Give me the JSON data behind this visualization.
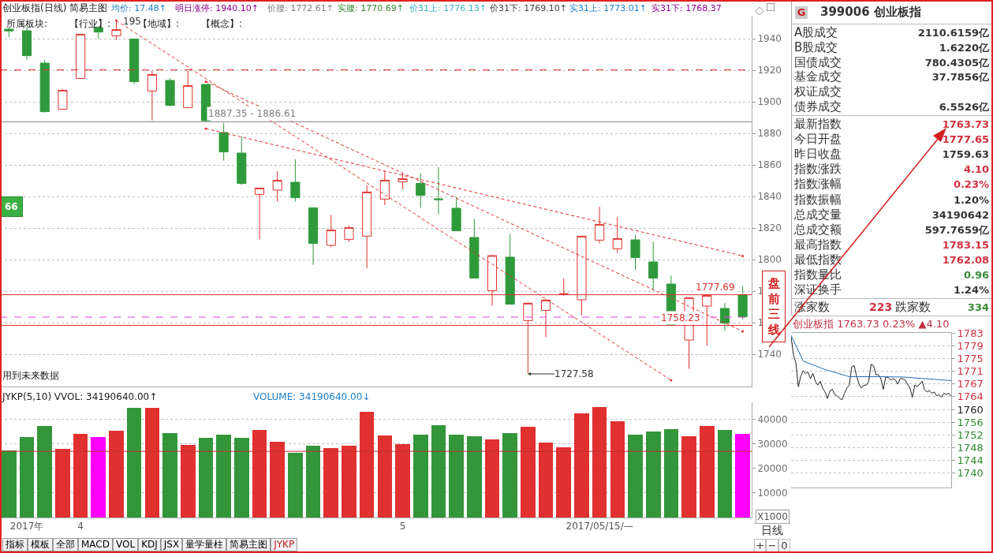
{
  "chart_data": [
    {
      "type": "candlestick",
      "title": "创业板指(日线) 简易主图",
      "annotations": [
        "均价: 17.48↑",
        "明日涨停: 1940.10↑",
        "价腰: 1772.61↑",
        "实腰: 1770.69↑",
        "价31上: 1776.13↑",
        "价31下: 1769.10↑",
        "实31上: 1773.01↑",
        "实31下: 1768.37",
        "所属板块:",
        "【行业】:",
        "【地域】:",
        "【概念】:",
        "用到未来数据",
        "盘前三线",
        "66",
        "1727.58",
        "195"
      ],
      "categories": [
        null,
        null,
        null,
        null,
        null,
        null,
        null,
        null,
        null,
        null,
        null,
        null,
        null,
        null,
        null,
        null,
        null,
        null,
        null,
        null,
        null,
        null,
        null,
        null,
        null,
        null,
        null,
        null,
        null,
        null,
        null,
        null,
        null,
        null,
        null,
        null,
        null,
        null,
        null,
        null,
        null,
        null
      ],
      "ohlc": [
        [
          1946,
          1947,
          1941,
          1944.9
        ],
        [
          1945,
          1947,
          1926.7,
          1929.2
        ],
        [
          1924.5,
          1926.5,
          1893.2,
          1893.7
        ],
        [
          1895.3,
          1907.8,
          1895.3,
          1907.3
        ],
        [
          1914.8,
          1943,
          1914.5,
          1942.8
        ],
        [
          1947,
          1948,
          1939.8,
          1944.2
        ],
        [
          1941.8,
          1951.5,
          1939.2,
          1945.7
        ],
        [
          1939.8,
          1940,
          1911.2,
          1912.7
        ],
        [
          1906.8,
          1919.8,
          1888.2,
          1917.3
        ],
        [
          1913.5,
          1915,
          1897.2,
          1897.7
        ],
        [
          1896.3,
          1919.5,
          1896.3,
          1910.3
        ],
        [
          1911,
          1911,
          1887.35,
          1888
        ],
        [
          1880.5,
          1886.61,
          1862.7,
          1868.2
        ],
        [
          1867.5,
          1878,
          1847.3,
          1848.2
        ],
        [
          1841.3,
          1845.5,
          1812.8,
          1845.3
        ],
        [
          1844,
          1856,
          1836.7,
          1850.2
        ],
        [
          1849,
          1863.5,
          1836.7,
          1839.2
        ],
        [
          1832.8,
          1833,
          1796.7,
          1810.2
        ],
        [
          1809,
          1828.3,
          1807.8,
          1818.7
        ],
        [
          1812.8,
          1821.5,
          1811.2,
          1820.2
        ],
        [
          1814.8,
          1847,
          1794.5,
          1842.8
        ],
        [
          1838.3,
          1856,
          1834.5,
          1850.3
        ],
        [
          1849.2,
          1854.5,
          1844.5,
          1851.2
        ],
        [
          1848.3,
          1854.5,
          1832.8,
          1840.7
        ],
        [
          1838.5,
          1858.5,
          1828.7,
          1838
        ],
        [
          1832.5,
          1839.5,
          1818,
          1818.2
        ],
        [
          1814,
          1825.7,
          1788,
          1788.2
        ],
        [
          1780.3,
          1803,
          1770.7,
          1802.5
        ],
        [
          1801.5,
          1816,
          1771.5,
          1771.7
        ],
        [
          1761.3,
          1773,
          1727.58,
          1772.3
        ],
        [
          1767.8,
          1775,
          1750.7,
          1774.3
        ],
        [
          1778,
          1788.2,
          1777,
          1778.3
        ],
        [
          1774.5,
          1815,
          1764.5,
          1814.8
        ],
        [
          1812.3,
          1833.5,
          1810.3,
          1822.3
        ],
        [
          1806.8,
          1827,
          1804.2,
          1813.3
        ],
        [
          1812.5,
          1815.7,
          1793.5,
          1801.2
        ],
        [
          1798.5,
          1811.2,
          1780.3,
          1788.2
        ],
        [
          1784.5,
          1789.8,
          1758.23,
          1758.5
        ],
        [
          1749,
          1776,
          1730.8,
          1775.8
        ],
        [
          1770.5,
          1777.69,
          1745.3,
          1777.2
        ],
        [
          1769,
          1772.3,
          1754.8,
          1759.8
        ],
        [
          1777.65,
          1783.15,
          1762.08,
          1763.73
        ]
      ],
      "series": [
        {
          "type": "line",
          "color": "#e03030",
          "line_style": "dashed",
          "values": [
            null,
            null,
            null,
            null,
            null,
            null,
            1951.5,
            null,
            null,
            null,
            null,
            null,
            null,
            null,
            null,
            null,
            null,
            null,
            null,
            null,
            null,
            null,
            null,
            null,
            null,
            null,
            null,
            null,
            null,
            null,
            null,
            null,
            null,
            null,
            null,
            null,
            null,
            1723.5,
            null,
            null,
            null,
            null
          ]
        },
        {
          "type": "line",
          "color": "#e03030",
          "line_style": "dashed",
          "values": [
            null,
            null,
            null,
            null,
            null,
            null,
            null,
            null,
            null,
            null,
            null,
            1912.8,
            null,
            null,
            null,
            null,
            null,
            null,
            null,
            null,
            null,
            null,
            null,
            null,
            null,
            null,
            null,
            null,
            null,
            null,
            null,
            null,
            null,
            null,
            null,
            null,
            null,
            null,
            null,
            null,
            null,
            1754.5
          ]
        },
        {
          "type": "line",
          "color": "#e03030",
          "line_style": "dashed",
          "values": [
            null,
            null,
            null,
            null,
            null,
            null,
            null,
            null,
            null,
            null,
            null,
            1883,
            null,
            null,
            null,
            null,
            null,
            null,
            null,
            null,
            null,
            null,
            null,
            null,
            null,
            null,
            null,
            null,
            null,
            null,
            null,
            null,
            null,
            null,
            null,
            null,
            null,
            null,
            null,
            null,
            null,
            1802.3
          ]
        }
      ],
      "ref_lines": [
        {
          "axis": "y",
          "value": 1920.2,
          "color": "#e03030",
          "line_style": "dashed"
        },
        {
          "axis": "y",
          "value": 1763.5,
          "color": "#e040e0",
          "line_style": "dashed"
        },
        {
          "axis": "y",
          "value": 1887.35,
          "color": "#808080",
          "label": "1887.35 - 1886.61"
        },
        {
          "axis": "y",
          "value": 1777.69,
          "color": "#e03030",
          "label": "1777.69"
        },
        {
          "axis": "y",
          "value": 1758.23,
          "color": "#e03030",
          "label": "1758.23"
        }
      ],
      "ylim": [
        1719.5,
        1954.5
      ],
      "yticks": [
        1740,
        1760,
        1780,
        1800,
        1820,
        1840,
        1860,
        1880,
        1900,
        1920,
        1940
      ],
      "grid": "y",
      "tick_labels": "y"
    },
    {
      "type": "bar",
      "title": "JYKP(5,10) VVOL: 34190640.00↑",
      "annotations": [
        "VOLUME: 34190640.00↓",
        "X1000",
        "指标",
        "模板",
        "全部",
        "MACD",
        "VOL",
        "KDJ",
        "JSX",
        "量学量柱",
        "简易主图",
        "JYKP"
      ],
      "categories": [
        null,
        "2017年",
        null,
        null,
        "4",
        null,
        null,
        null,
        null,
        null,
        null,
        null,
        null,
        null,
        null,
        null,
        null,
        null,
        null,
        null,
        null,
        null,
        "5",
        null,
        null,
        null,
        null,
        null,
        null,
        null,
        null,
        null,
        null,
        "2017/05/15/—",
        null,
        null,
        null,
        null,
        null,
        null,
        null,
        null
      ],
      "values": [
        27400,
        32800,
        37400,
        28000,
        34100,
        32800,
        35500,
        44600,
        44600,
        34300,
        29500,
        32400,
        33900,
        32400,
        35800,
        30900,
        26300,
        29400,
        28400,
        29400,
        43100,
        33500,
        30100,
        33900,
        37800,
        33800,
        33200,
        31800,
        34300,
        37000,
        30500,
        28800,
        42400,
        45200,
        39300,
        33800,
        35100,
        36200,
        33200,
        37400,
        35800,
        34191
      ],
      "colors": [
        "#33963a",
        "#33963a",
        "#33963a",
        "#e03030",
        "#e03030",
        "#ff00ff",
        "#e03030",
        "#33963a",
        "#e03030",
        "#33963a",
        "#e03030",
        "#33963a",
        "#33963a",
        "#33963a",
        "#e03030",
        "#e03030",
        "#33963a",
        "#33963a",
        "#e03030",
        "#e03030",
        "#e03030",
        "#e03030",
        "#e03030",
        "#33963a",
        "#33963a",
        "#33963a",
        "#33963a",
        "#e03030",
        "#33963a",
        "#e03030",
        "#e03030",
        "#e03030",
        "#e03030",
        "#e03030",
        "#e03030",
        "#33963a",
        "#33963a",
        "#33963a",
        "#e03030",
        "#e03030",
        "#33963a",
        "#ff00ff"
      ],
      "ref_lines": [
        {
          "axis": "y",
          "value": 27000,
          "color": "#c03030"
        }
      ],
      "ylim": [
        0,
        47000
      ],
      "yticks": [
        10000,
        20000,
        30000,
        40000
      ],
      "grid": "y"
    },
    {
      "type": "other",
      "title": "399006 创业板指",
      "categories": [
        "A股成交",
        "B股成交",
        "国债成交",
        "基金成交",
        "权证成交",
        "债券成交",
        "最新指数",
        "今日开盘",
        "昨日收盘",
        "指数涨跌",
        "指数涨幅",
        "指数振幅",
        "总成交量",
        "总成交额",
        "最高指数",
        "最低指数",
        "指数量比",
        "深证换手"
      ],
      "value_labels": [
        "2110.6159亿",
        "1.6220亿",
        "780.4305亿",
        "37.7856亿",
        null,
        "6.5526亿",
        "1763.73",
        "1777.65",
        "1759.63",
        "4.10",
        "0.23%",
        "1.20%",
        "34190642",
        "597.7659亿",
        "1783.15",
        "1762.08",
        "0.96",
        "1.24%"
      ],
      "colors": [
        "#333333",
        "#333333",
        "#333333",
        "#333333",
        null,
        "#333333",
        "#d03040",
        "#d03040",
        "#333333",
        "#d03040",
        "#d03040",
        "#333333",
        "#333333",
        "#333333",
        "#d03040",
        "#d03040",
        "#3a8a3a",
        "#333333"
      ],
      "annotations": [
        "G",
        "涨家数",
        "223",
        "跌家数",
        "334",
        "日线",
        "+",
        "−",
        "0"
      ]
    },
    {
      "type": "line",
      "title": "创业板指 1763.73 0.23% ▲4.10",
      "categories": [
        null,
        null,
        null,
        null,
        null,
        null,
        null,
        null,
        null,
        null,
        null,
        null,
        null,
        null,
        null,
        null,
        null,
        null,
        null,
        null,
        null,
        null,
        null,
        null,
        null,
        null,
        null,
        null,
        null,
        null,
        null,
        null,
        null,
        null,
        null,
        null,
        null,
        null,
        null,
        null,
        null,
        null,
        null,
        null,
        null,
        null,
        null,
        null,
        null,
        null,
        null,
        null,
        null,
        null,
        null,
        null,
        null,
        null,
        null,
        null,
        null,
        null,
        null,
        null,
        null,
        null,
        null
      ],
      "series": [
        {
          "color": "#202020",
          "values": [
            1782.0,
            1776.3,
            1773.9,
            1766.6,
            1769.9,
            1771.5,
            1770.7,
            1771.1,
            1769.1,
            1770.7,
            1768.3,
            1767.1,
            1768.3,
            1766.2,
            1765.0,
            1763.0,
            1765.4,
            1765.8,
            1764.2,
            1763.8,
            1763.0,
            1762.6,
            1764.6,
            1766.2,
            1767.1,
            1772.7,
            1773.1,
            1769.9,
            1767.4,
            1766.2,
            1767.1,
            1767.1,
            1768.3,
            1773.5,
            1773.1,
            1770.3,
            1770.3,
            1769.1,
            1765.8,
            1769.5,
            1769.5,
            1768.7,
            1769.1,
            1768.7,
            1767.4,
            1769.1,
            1769.1,
            1768.7,
            1767.4,
            1766.2,
            1763.4,
            1767.1,
            1766.6,
            1767.4,
            1768.3,
            1765.8,
            1765.0,
            1765.4,
            1764.6,
            1765.0,
            1763.8,
            1764.2,
            1763.4,
            1764.6,
            1764.2,
            1764.6,
            1763.73
          ]
        },
        {
          "color": "#1e6eb4",
          "values": [
            1782.4,
            null,
            null,
            null,
            null,
            1774.5,
            null,
            null,
            null,
            null,
            null,
            null,
            null,
            null,
            1771.9,
            null,
            null,
            null,
            null,
            null,
            null,
            null,
            null,
            null,
            1769.7,
            null,
            null,
            null,
            null,
            null,
            null,
            null,
            null,
            null,
            null,
            null,
            1769.7,
            null,
            null,
            null,
            null,
            null,
            null,
            null,
            null,
            null,
            1769.6,
            null,
            null,
            null,
            null,
            null,
            null,
            null,
            null,
            1769.1,
            null,
            null,
            null,
            null,
            null,
            null,
            null,
            null,
            null,
            null,
            1768.5
          ]
        }
      ],
      "ylim": [
        1735.65,
        1783.15
      ],
      "yticks": [
        {
          "value": 1740.03,
          "label": "1740"
        },
        {
          "value": 1743.95,
          "label": "1744"
        },
        {
          "value": 1747.87,
          "label": "1748"
        },
        {
          "value": 1751.79,
          "label": "1752"
        },
        {
          "value": 1755.71,
          "label": "1756"
        },
        {
          "value": 1759.63,
          "label": "1760"
        },
        {
          "value": 1763.55,
          "label": "1764"
        },
        {
          "value": 1767.47,
          "label": "1767"
        },
        {
          "value": 1771.39,
          "label": "1771"
        },
        {
          "value": 1775.31,
          "label": "1775"
        },
        {
          "value": 1779.23,
          "label": "1779"
        },
        {
          "value": 1783.15,
          "label": "1783"
        }
      ],
      "grid": "y",
      "tick_labels": "y"
    }
  ]
}
